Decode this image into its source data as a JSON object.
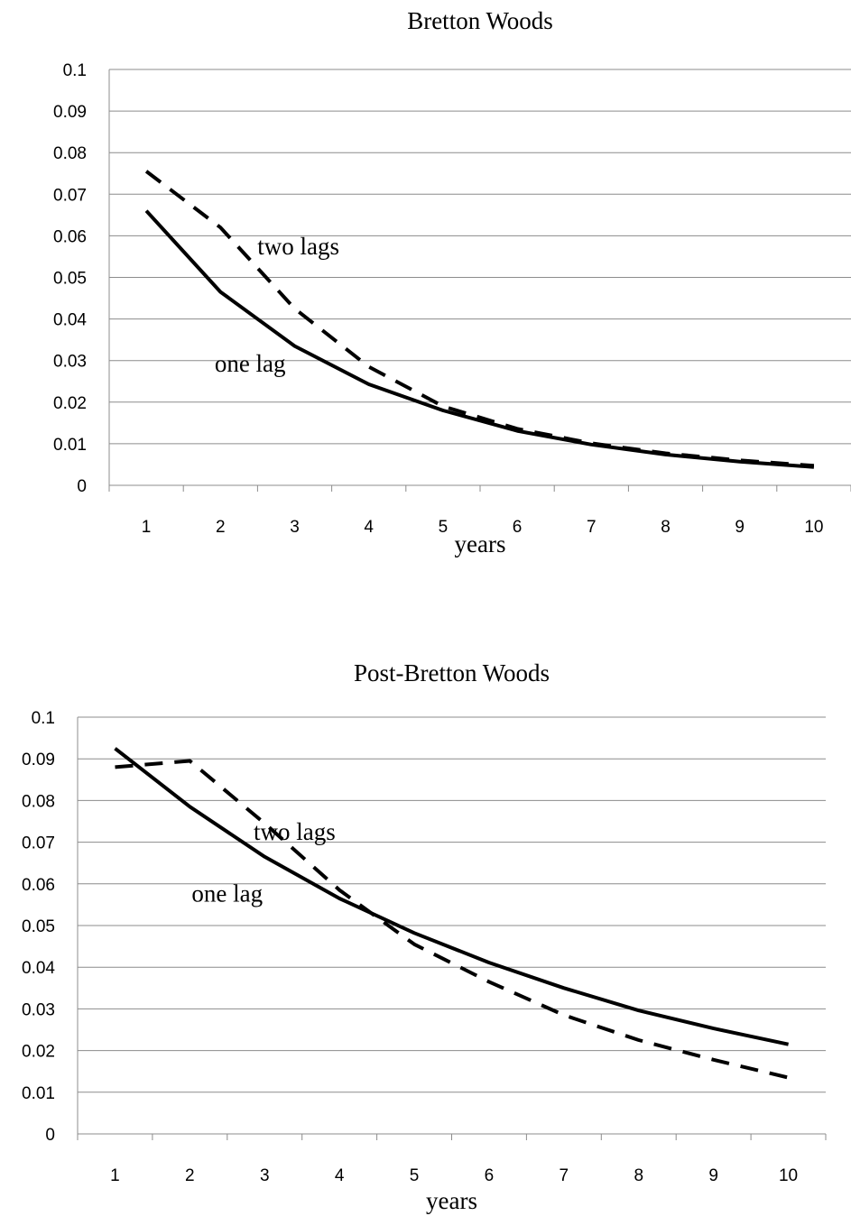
{
  "chart_data": [
    {
      "type": "line",
      "title": "Bretton Woods",
      "xlabel": "years",
      "ylabel": "",
      "x": [
        1,
        2,
        3,
        4,
        5,
        6,
        7,
        8,
        9,
        10
      ],
      "x_tick_labels": [
        "1",
        "2",
        "3",
        "4",
        "5",
        "6",
        "7",
        "8",
        "9",
        "10"
      ],
      "ylim": [
        0,
        0.1
      ],
      "y_tick_labels": [
        "0",
        "0.01",
        "0.02",
        "0.03",
        "0.04",
        "0.05",
        "0.06",
        "0.07",
        "0.08",
        "0.09",
        "0.1"
      ],
      "grid": true,
      "legend": "none",
      "series": [
        {
          "label": "one lag",
          "style": "solid",
          "values": [
            0.066,
            0.0465,
            0.0335,
            0.0243,
            0.018,
            0.0131,
            0.0098,
            0.0074,
            0.0057,
            0.0044
          ]
        },
        {
          "label": "two lags",
          "style": "dashed",
          "values": [
            0.0755,
            0.062,
            0.0425,
            0.0285,
            0.019,
            0.0136,
            0.0101,
            0.0077,
            0.006,
            0.0047
          ]
        }
      ],
      "annotations": [
        {
          "text": "two lags",
          "series": "two lags",
          "x": 3.05,
          "y": 0.0575
        },
        {
          "text": "one lag",
          "series": "one lag",
          "x": 2.4,
          "y": 0.0293
        }
      ]
    },
    {
      "type": "line",
      "title": "Post-Bretton Woods",
      "xlabel": "years",
      "ylabel": "",
      "x": [
        1,
        2,
        3,
        4,
        5,
        6,
        7,
        8,
        9,
        10
      ],
      "x_tick_labels": [
        "1",
        "2",
        "3",
        "4",
        "5",
        "6",
        "7",
        "8",
        "9",
        "10"
      ],
      "ylim": [
        0,
        0.1
      ],
      "y_tick_labels": [
        "0",
        "0.01",
        "0.02",
        "0.03",
        "0.04",
        "0.05",
        "0.06",
        "0.07",
        "0.08",
        "0.09",
        "0.1"
      ],
      "grid": true,
      "legend": "none",
      "series": [
        {
          "label": "one lag",
          "style": "solid",
          "values": [
            0.0925,
            0.0785,
            0.0665,
            0.0565,
            0.0482,
            0.0411,
            0.035,
            0.0296,
            0.0253,
            0.0215
          ]
        },
        {
          "label": "two lags",
          "style": "dashed",
          "values": [
            0.088,
            0.0895,
            0.0745,
            0.0585,
            0.0455,
            0.0365,
            0.0285,
            0.0225,
            0.0178,
            0.0135
          ]
        }
      ],
      "annotations": [
        {
          "text": "two lags",
          "series": "two lags",
          "x": 3.4,
          "y": 0.0725
        },
        {
          "text": "one lag",
          "series": "one lag",
          "x": 2.5,
          "y": 0.0577
        }
      ]
    }
  ]
}
